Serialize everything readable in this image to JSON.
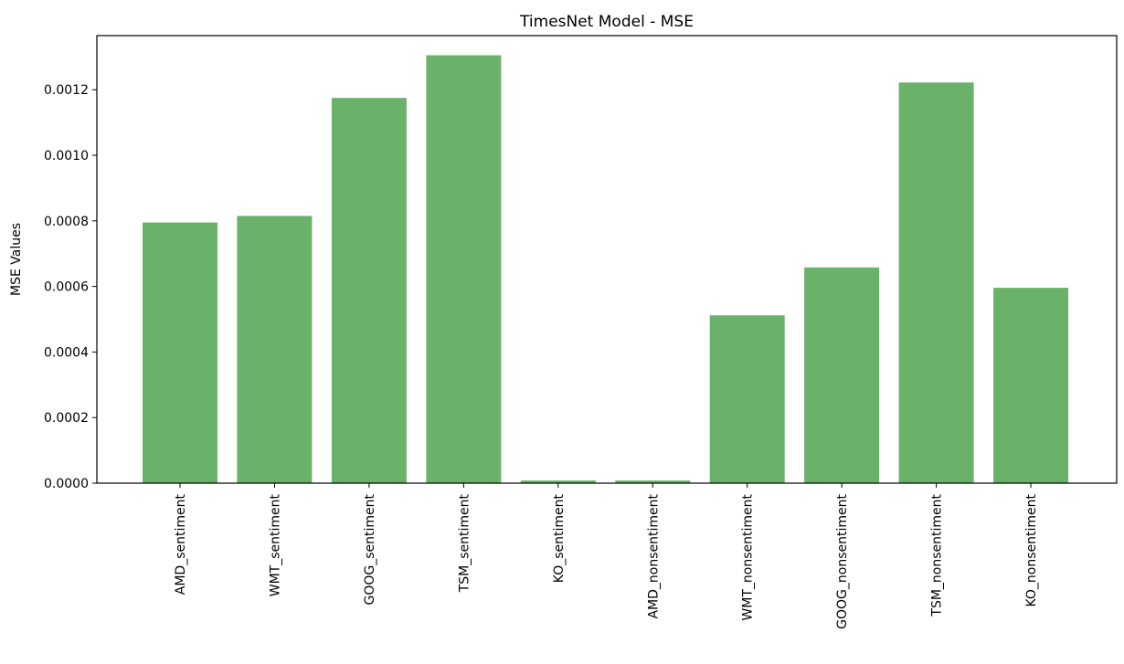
{
  "chart_data": {
    "type": "bar",
    "title": "TimesNet Model - MSE",
    "xlabel": "",
    "ylabel": "MSE Values",
    "categories": [
      "AMD_sentiment",
      "WMT_sentiment",
      "GOOG_sentiment",
      "TSM_sentiment",
      "KO_sentiment",
      "AMD_nonsentiment",
      "WMT_nonsentiment",
      "GOOG_nonsentiment",
      "TSM_nonsentiment",
      "KO_nonsentiment"
    ],
    "values": [
      0.000795,
      0.000815,
      0.001175,
      0.001305,
      8e-06,
      8e-06,
      0.000512,
      0.000658,
      0.001222,
      0.000596
    ],
    "ylim": [
      0,
      0.001365
    ],
    "yticks": [
      "0.0000",
      "0.0002",
      "0.0004",
      "0.0006",
      "0.0008",
      "0.0010",
      "0.0012"
    ],
    "grid": false,
    "bar_color": "#6ab26a"
  }
}
